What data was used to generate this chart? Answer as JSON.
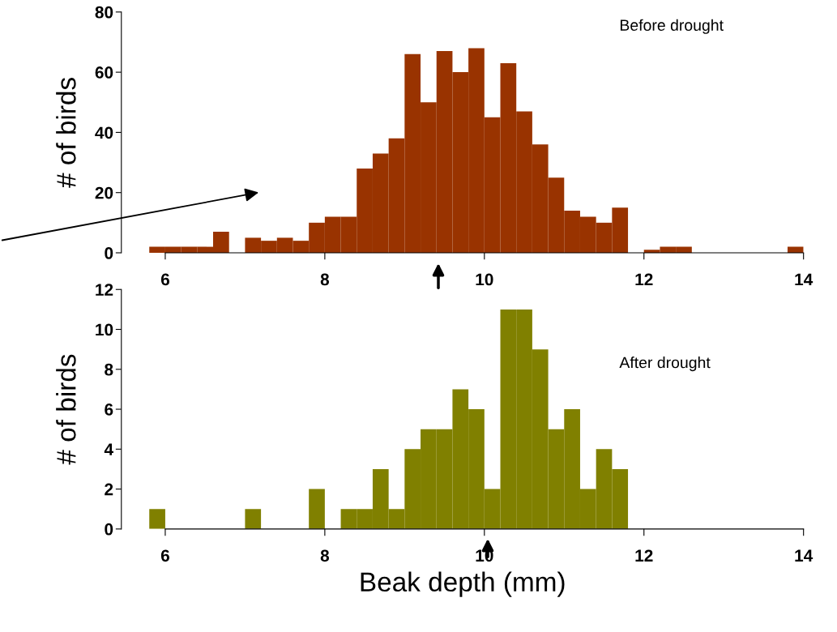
{
  "chart_data": [
    {
      "type": "histogram",
      "ylabel": "# of birds",
      "color": "#993300",
      "bins": [
        5.8,
        6.0,
        6.2,
        6.4,
        6.6,
        6.8,
        7.0,
        7.2,
        7.4,
        7.6,
        7.8,
        8.0,
        8.2,
        8.4,
        8.6,
        8.8,
        9.0,
        9.2,
        9.4,
        9.6,
        9.8,
        10.0,
        10.2,
        10.4,
        10.6,
        10.8,
        11.0,
        11.2,
        11.4,
        11.6,
        11.8,
        12.0,
        12.2,
        12.4,
        12.6,
        12.8,
        13.0,
        13.2,
        13.4,
        13.6,
        13.8,
        14.0
      ],
      "values": [
        2,
        2,
        2,
        2,
        7,
        0,
        5,
        4,
        5,
        4,
        10,
        12,
        12,
        28,
        33,
        38,
        66,
        50,
        67,
        60,
        68,
        45,
        63,
        47,
        36,
        25,
        14,
        12,
        10,
        15,
        0,
        1,
        2,
        2,
        0,
        0,
        0,
        0,
        0,
        0,
        2
      ],
      "xlim": [
        5.45,
        14
      ],
      "xticks": [
        6,
        8,
        10,
        12,
        14
      ],
      "ylim": [
        0,
        80
      ],
      "yticks": [
        0,
        20,
        40,
        60,
        80
      ],
      "annotations": [
        "Before drought"
      ]
    },
    {
      "type": "histogram",
      "ylabel": "# of birds",
      "xlabel": "Beak depth (mm)",
      "color": "#808000",
      "bins": [
        5.8,
        6.0,
        6.2,
        6.4,
        6.6,
        6.8,
        7.0,
        7.2,
        7.4,
        7.6,
        7.8,
        8.0,
        8.2,
        8.4,
        8.6,
        8.8,
        9.0,
        9.2,
        9.4,
        9.6,
        9.8,
        10.0,
        10.2,
        10.4,
        10.6,
        10.8,
        11.0,
        11.2,
        11.4,
        11.6,
        11.8,
        12.0,
        12.2,
        12.4,
        12.6,
        12.8,
        13.0,
        13.2,
        13.4,
        13.6,
        13.8,
        14.0
      ],
      "values": [
        1,
        0,
        0,
        0,
        0,
        0,
        1,
        0,
        0,
        0,
        2,
        0,
        1,
        1,
        3,
        1,
        4,
        5,
        5,
        7,
        6,
        2,
        11,
        11,
        9,
        5,
        6,
        2,
        4,
        3,
        0,
        0,
        0,
        0,
        0,
        0,
        0,
        0,
        0,
        0,
        0
      ],
      "xlim": [
        5.45,
        14
      ],
      "xticks": [
        6,
        8,
        10,
        12,
        14
      ],
      "ylim": [
        0,
        12
      ],
      "yticks": [
        0,
        2,
        4,
        6,
        8,
        10,
        12
      ],
      "annotations": [
        "After drought"
      ]
    }
  ]
}
